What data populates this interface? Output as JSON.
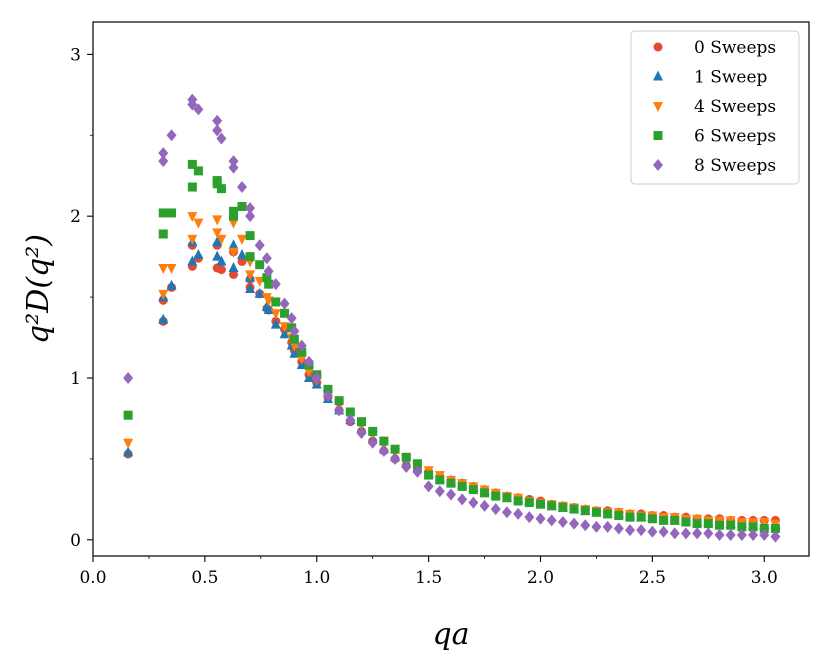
{
  "chart_data": {
    "type": "scatter",
    "xlabel": "qa",
    "ylabel": "q²D(q²)",
    "xlim": [
      0.0,
      3.2
    ],
    "ylim": [
      -0.1,
      3.2
    ],
    "x_ticks": [
      "0.0",
      "0.5",
      "1.0",
      "1.5",
      "2.0",
      "2.5",
      "3.0"
    ],
    "x_tick_values": [
      0.0,
      0.5,
      1.0,
      1.5,
      2.0,
      2.5,
      3.0
    ],
    "y_ticks": [
      "0",
      "1",
      "2",
      "3"
    ],
    "y_tick_values": [
      0,
      1,
      2,
      3
    ],
    "legend_position": "top-right",
    "series": [
      {
        "name": "0 Sweeps",
        "marker": "circle",
        "color": "#e24a33",
        "x": [
          0.157,
          0.314,
          0.314,
          0.351,
          0.444,
          0.444,
          0.471,
          0.555,
          0.555,
          0.574,
          0.628,
          0.628,
          0.666,
          0.702,
          0.702,
          0.745,
          0.777,
          0.785,
          0.817,
          0.856,
          0.888,
          0.9,
          0.933,
          0.965,
          1.0,
          1.05,
          1.1,
          1.15,
          1.2,
          1.25,
          1.3,
          1.35,
          1.4,
          1.45,
          1.5,
          1.55,
          1.6,
          1.65,
          1.7,
          1.75,
          1.8,
          1.85,
          1.9,
          1.95,
          2.0,
          2.05,
          2.1,
          2.15,
          2.2,
          2.25,
          2.3,
          2.35,
          2.4,
          2.45,
          2.5,
          2.55,
          2.6,
          2.65,
          2.7,
          2.75,
          2.8,
          2.85,
          2.9,
          2.95,
          3.0,
          3.05
        ],
        "y": [
          0.53,
          1.35,
          1.48,
          1.56,
          1.69,
          1.82,
          1.74,
          1.68,
          1.82,
          1.67,
          1.64,
          1.78,
          1.72,
          1.61,
          1.56,
          1.52,
          1.43,
          1.42,
          1.35,
          1.3,
          1.22,
          1.17,
          1.1,
          1.02,
          0.97,
          0.88,
          0.8,
          0.73,
          0.67,
          0.61,
          0.55,
          0.5,
          0.46,
          0.43,
          0.42,
          0.39,
          0.37,
          0.35,
          0.33,
          0.31,
          0.29,
          0.27,
          0.26,
          0.25,
          0.24,
          0.22,
          0.21,
          0.2,
          0.19,
          0.18,
          0.18,
          0.17,
          0.16,
          0.16,
          0.15,
          0.15,
          0.14,
          0.14,
          0.13,
          0.13,
          0.13,
          0.12,
          0.12,
          0.12,
          0.12,
          0.12
        ]
      },
      {
        "name": "1 Sweep",
        "marker": "triangle-up",
        "color": "#1f77b4",
        "x": [
          0.157,
          0.314,
          0.314,
          0.351,
          0.444,
          0.444,
          0.471,
          0.555,
          0.555,
          0.574,
          0.628,
          0.628,
          0.666,
          0.702,
          0.702,
          0.745,
          0.777,
          0.785,
          0.817,
          0.856,
          0.888,
          0.9,
          0.933,
          0.965,
          1.0,
          1.05,
          1.1,
          1.15,
          1.2,
          1.25,
          1.3,
          1.35,
          1.4,
          1.45,
          1.5,
          1.55,
          1.6,
          1.65,
          1.7,
          1.75,
          1.8,
          1.85,
          1.9,
          1.95,
          2.0,
          2.05,
          2.1,
          2.15,
          2.2,
          2.25,
          2.3,
          2.35,
          2.4,
          2.45,
          2.5,
          2.55,
          2.6,
          2.65,
          2.7,
          2.75,
          2.8,
          2.85,
          2.9,
          2.95,
          3.0,
          3.05
        ],
        "y": [
          0.54,
          1.36,
          1.5,
          1.57,
          1.72,
          1.84,
          1.76,
          1.75,
          1.84,
          1.72,
          1.68,
          1.82,
          1.76,
          1.62,
          1.55,
          1.52,
          1.44,
          1.42,
          1.33,
          1.27,
          1.2,
          1.15,
          1.08,
          1.0,
          0.96,
          0.87,
          0.8,
          0.74,
          0.68,
          0.62,
          0.56,
          0.51,
          0.47,
          0.44,
          0.41,
          0.38,
          0.36,
          0.34,
          0.32,
          0.3,
          0.28,
          0.26,
          0.25,
          0.24,
          0.22,
          0.21,
          0.2,
          0.19,
          0.18,
          0.17,
          0.16,
          0.16,
          0.15,
          0.14,
          0.14,
          0.13,
          0.12,
          0.12,
          0.11,
          0.11,
          0.1,
          0.1,
          0.1,
          0.09,
          0.09,
          0.09
        ]
      },
      {
        "name": "4 Sweeps",
        "marker": "triangle-down",
        "color": "#ff7f0e",
        "x": [
          0.157,
          0.314,
          0.314,
          0.351,
          0.444,
          0.444,
          0.471,
          0.555,
          0.555,
          0.574,
          0.628,
          0.628,
          0.666,
          0.702,
          0.702,
          0.745,
          0.777,
          0.785,
          0.817,
          0.856,
          0.888,
          0.9,
          0.933,
          0.965,
          1.0,
          1.05,
          1.1,
          1.15,
          1.2,
          1.25,
          1.3,
          1.35,
          1.4,
          1.45,
          1.5,
          1.55,
          1.6,
          1.65,
          1.7,
          1.75,
          1.8,
          1.85,
          1.9,
          1.95,
          2.0,
          2.05,
          2.1,
          2.15,
          2.2,
          2.25,
          2.3,
          2.35,
          2.4,
          2.45,
          2.5,
          2.55,
          2.6,
          2.65,
          2.7,
          2.75,
          2.8,
          2.85,
          2.9,
          2.95,
          3.0,
          3.05
        ],
        "y": [
          0.6,
          1.68,
          1.52,
          1.68,
          1.86,
          2.0,
          1.96,
          1.9,
          1.98,
          1.86,
          1.78,
          1.96,
          1.86,
          1.72,
          1.64,
          1.6,
          1.5,
          1.48,
          1.4,
          1.32,
          1.25,
          1.2,
          1.12,
          1.04,
          0.99,
          0.9,
          0.83,
          0.77,
          0.71,
          0.65,
          0.59,
          0.54,
          0.5,
          0.46,
          0.43,
          0.4,
          0.37,
          0.35,
          0.33,
          0.31,
          0.29,
          0.27,
          0.26,
          0.24,
          0.23,
          0.22,
          0.21,
          0.2,
          0.19,
          0.18,
          0.17,
          0.17,
          0.16,
          0.15,
          0.15,
          0.14,
          0.14,
          0.13,
          0.13,
          0.12,
          0.12,
          0.12,
          0.11,
          0.11,
          0.11,
          0.1
        ]
      },
      {
        "name": "6 Sweeps",
        "marker": "square",
        "color": "#2ca02c",
        "x": [
          0.157,
          0.314,
          0.314,
          0.351,
          0.444,
          0.444,
          0.471,
          0.555,
          0.555,
          0.574,
          0.628,
          0.628,
          0.666,
          0.702,
          0.702,
          0.745,
          0.777,
          0.785,
          0.817,
          0.856,
          0.888,
          0.9,
          0.933,
          0.965,
          1.0,
          1.05,
          1.1,
          1.15,
          1.2,
          1.25,
          1.3,
          1.35,
          1.4,
          1.45,
          1.5,
          1.55,
          1.6,
          1.65,
          1.7,
          1.75,
          1.8,
          1.85,
          1.9,
          1.95,
          2.0,
          2.05,
          2.1,
          2.15,
          2.2,
          2.25,
          2.3,
          2.35,
          2.4,
          2.45,
          2.5,
          2.55,
          2.6,
          2.65,
          2.7,
          2.75,
          2.8,
          2.85,
          2.9,
          2.95,
          3.0,
          3.05
        ],
        "y": [
          0.77,
          1.89,
          2.02,
          2.02,
          2.18,
          2.32,
          2.28,
          2.2,
          2.22,
          2.17,
          2.03,
          2.0,
          2.06,
          1.88,
          1.75,
          1.7,
          1.62,
          1.58,
          1.47,
          1.4,
          1.31,
          1.24,
          1.16,
          1.08,
          1.02,
          0.93,
          0.86,
          0.79,
          0.73,
          0.67,
          0.61,
          0.56,
          0.51,
          0.47,
          0.4,
          0.37,
          0.35,
          0.33,
          0.31,
          0.29,
          0.27,
          0.26,
          0.24,
          0.23,
          0.22,
          0.21,
          0.2,
          0.19,
          0.18,
          0.17,
          0.16,
          0.15,
          0.14,
          0.14,
          0.13,
          0.12,
          0.12,
          0.11,
          0.1,
          0.1,
          0.09,
          0.09,
          0.08,
          0.08,
          0.07,
          0.07
        ]
      },
      {
        "name": "8 Sweeps",
        "marker": "diamond",
        "color": "#9467bd",
        "x": [
          0.157,
          0.314,
          0.314,
          0.351,
          0.444,
          0.444,
          0.471,
          0.555,
          0.555,
          0.574,
          0.628,
          0.628,
          0.666,
          0.702,
          0.702,
          0.745,
          0.777,
          0.785,
          0.817,
          0.856,
          0.888,
          0.9,
          0.933,
          0.965,
          1.0,
          1.05,
          1.1,
          1.15,
          1.2,
          1.25,
          1.3,
          1.35,
          1.4,
          1.45,
          1.5,
          1.55,
          1.6,
          1.65,
          1.7,
          1.75,
          1.8,
          1.85,
          1.9,
          1.95,
          2.0,
          2.05,
          2.1,
          2.15,
          2.2,
          2.25,
          2.3,
          2.35,
          2.4,
          2.45,
          2.5,
          2.55,
          2.6,
          2.65,
          2.7,
          2.75,
          2.8,
          2.85,
          2.9,
          2.95,
          3.0,
          3.05
        ],
        "y": [
          1.0,
          2.34,
          2.39,
          2.5,
          2.72,
          2.69,
          2.66,
          2.59,
          2.53,
          2.48,
          2.34,
          2.3,
          2.18,
          2.05,
          2.0,
          1.82,
          1.74,
          1.66,
          1.58,
          1.46,
          1.37,
          1.29,
          1.2,
          1.1,
          1.0,
          0.89,
          0.8,
          0.74,
          0.66,
          0.6,
          0.55,
          0.5,
          0.45,
          0.42,
          0.33,
          0.3,
          0.28,
          0.25,
          0.23,
          0.21,
          0.19,
          0.17,
          0.16,
          0.14,
          0.13,
          0.12,
          0.11,
          0.1,
          0.09,
          0.08,
          0.08,
          0.07,
          0.06,
          0.06,
          0.05,
          0.05,
          0.04,
          0.04,
          0.04,
          0.04,
          0.03,
          0.03,
          0.03,
          0.03,
          0.03,
          0.02
        ]
      }
    ]
  }
}
